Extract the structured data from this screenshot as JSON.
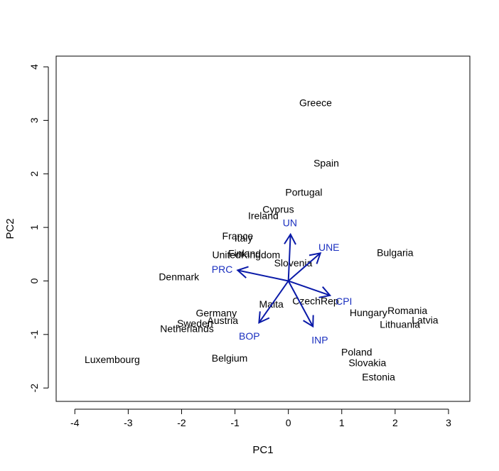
{
  "chart_data": {
    "type": "scatter",
    "subtype": "biplot",
    "title": "",
    "xlabel": "PC1",
    "ylabel": "PC2",
    "xlim": [
      -4.35,
      3.4
    ],
    "ylim": [
      -2.25,
      4.2
    ],
    "x_ticks": [
      -4,
      -3,
      -2,
      -1,
      0,
      1,
      2,
      3
    ],
    "y_ticks": [
      -2,
      -1,
      0,
      1,
      2,
      3,
      4
    ],
    "grid": false,
    "legend": "none",
    "colors": {
      "points": "#000000",
      "loadings": "#1a2fbf",
      "arrows": "#0a1aa8",
      "axes": "#000000"
    },
    "points": [
      {
        "label": "Greece",
        "x": 0.51,
        "y": 3.33
      },
      {
        "label": "Spain",
        "x": 0.71,
        "y": 2.2
      },
      {
        "label": "Portugal",
        "x": 0.29,
        "y": 1.66
      },
      {
        "label": "Cyprus",
        "x": -0.19,
        "y": 1.34
      },
      {
        "label": "Ireland",
        "x": -0.47,
        "y": 1.22
      },
      {
        "label": "France",
        "x": -0.95,
        "y": 0.84
      },
      {
        "label": "Italy",
        "x": -0.84,
        "y": 0.8
      },
      {
        "label": "Finland",
        "x": -0.82,
        "y": 0.52
      },
      {
        "label": "UnitedKingdom",
        "x": -0.79,
        "y": 0.49
      },
      {
        "label": "Slovenia",
        "x": 0.09,
        "y": 0.34
      },
      {
        "label": "Bulgaria",
        "x": 2.0,
        "y": 0.53
      },
      {
        "label": "Denmark",
        "x": -2.05,
        "y": 0.08
      },
      {
        "label": "Malta",
        "x": -0.32,
        "y": -0.43
      },
      {
        "label": "CzechRep",
        "x": 0.51,
        "y": -0.37
      },
      {
        "label": "Hungary",
        "x": 1.5,
        "y": -0.59
      },
      {
        "label": "Romania",
        "x": 2.23,
        "y": -0.55
      },
      {
        "label": "Latvia",
        "x": 2.56,
        "y": -0.73
      },
      {
        "label": "Lithuania",
        "x": 2.09,
        "y": -0.81
      },
      {
        "label": "Germany",
        "x": -1.35,
        "y": -0.6
      },
      {
        "label": "Sweden",
        "x": -1.75,
        "y": -0.79
      },
      {
        "label": "Austria",
        "x": -1.23,
        "y": -0.74
      },
      {
        "label": "Netherlands",
        "x": -1.9,
        "y": -0.89
      },
      {
        "label": "Luxembourg",
        "x": -3.3,
        "y": -1.47
      },
      {
        "label": "Belgium",
        "x": -1.1,
        "y": -1.44
      },
      {
        "label": "Poland",
        "x": 1.28,
        "y": -1.33
      },
      {
        "label": "Slovakia",
        "x": 1.48,
        "y": -1.53
      },
      {
        "label": "Estonia",
        "x": 1.69,
        "y": -1.79
      }
    ],
    "loadings": [
      {
        "label": "UN",
        "x": 0.04,
        "y": 0.87,
        "label_x": 0.03,
        "label_y": 1.09
      },
      {
        "label": "UNE",
        "x": 0.6,
        "y": 0.52,
        "label_x": 0.76,
        "label_y": 0.63
      },
      {
        "label": "PRC",
        "x": -0.95,
        "y": 0.2,
        "label_x": -1.24,
        "label_y": 0.22
      },
      {
        "label": "CPI",
        "x": 0.78,
        "y": -0.27,
        "label_x": 1.04,
        "label_y": -0.38
      },
      {
        "label": "INP",
        "x": 0.46,
        "y": -0.85,
        "label_x": 0.59,
        "label_y": -1.1
      },
      {
        "label": "BOP",
        "x": -0.55,
        "y": -0.78,
        "label_x": -0.73,
        "label_y": -1.03
      }
    ]
  }
}
